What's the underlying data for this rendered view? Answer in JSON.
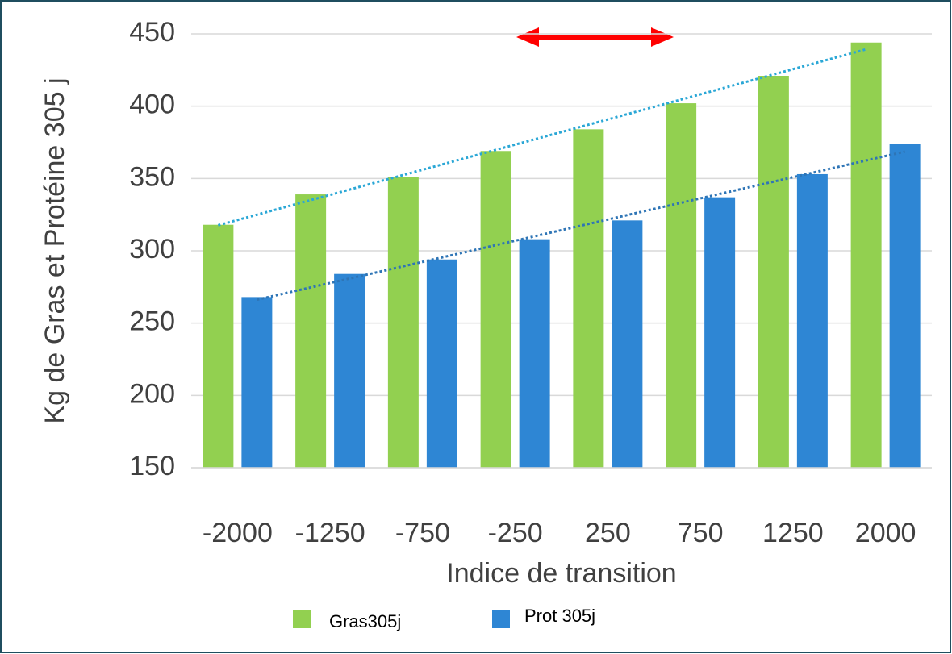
{
  "chart_data": {
    "type": "bar",
    "categories": [
      "-2000",
      "-1250",
      "-750",
      "-250",
      "250",
      "750",
      "1250",
      "2000"
    ],
    "series": [
      {
        "name": "Gras305j",
        "color": "#92d050",
        "values": [
          318,
          339,
          351,
          369,
          384,
          402,
          421,
          444
        ]
      },
      {
        "name": "Prot 305j",
        "color": "#2e86d4",
        "values": [
          268,
          284,
          294,
          308,
          321,
          337,
          353,
          374
        ]
      }
    ],
    "trendline_colors": [
      "#2aa7d6",
      "#2e75b6"
    ],
    "xlabel": "Indice de transition",
    "ylabel": "Kg de Gras et Protéine 305 j",
    "ylim": [
      150,
      450
    ],
    "yticks": [
      150,
      200,
      250,
      300,
      350,
      400,
      450
    ],
    "grid": true
  }
}
